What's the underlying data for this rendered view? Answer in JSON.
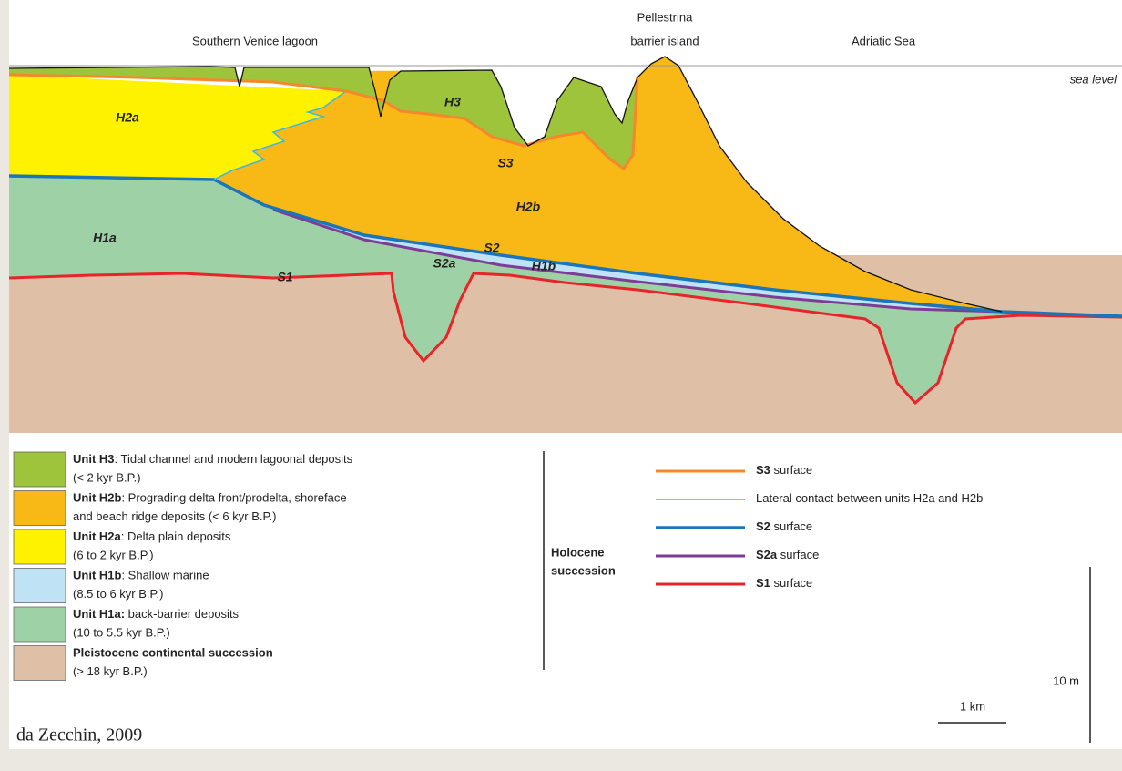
{
  "header": {
    "lagoon": "Southern Venice lagoon",
    "barrier": [
      "Pellestrina",
      "barrier island"
    ],
    "sea": "Adriatic Sea"
  },
  "section": {
    "sea_level": "sea level",
    "labels": [
      "H3",
      "H2a",
      "S3",
      "H2b",
      "H1a",
      "S2",
      "S2a",
      "H1b",
      "S1"
    ]
  },
  "legend": {
    "units": [
      {
        "name": "Unit H3",
        "text": ": Tidal channel and modern lagoonal deposits",
        "detail": "(< 2 kyr B.P.)"
      },
      {
        "name": "Unit H2b",
        "text": ": Prograding delta front/prodelta, shoreface",
        "detail": "and beach ridge deposits (< 6 kyr B.P.)"
      },
      {
        "name": "Unit H2a",
        "text": ": Delta plain deposits",
        "detail": "(6 to 2 kyr B.P.)"
      },
      {
        "name": "Unit H1b",
        "text": ": Shallow marine",
        "detail": "(8.5 to 6 kyr B.P.)"
      },
      {
        "name": "Unit H1a:",
        "text": " back-barrier deposits",
        "detail": "(10 to 5.5 kyr B.P.)"
      },
      {
        "name": "Pleistocene continental succession",
        "detail": "(> 18 kyr B.P.)"
      }
    ],
    "group": [
      "Holocene",
      "succession"
    ],
    "lines": [
      {
        "name": "S3",
        "text": " surface"
      },
      {
        "text": "Lateral contact between units H2a and H2b"
      },
      {
        "name": "S2",
        "text": " surface"
      },
      {
        "name": "S2a",
        "text": " surface"
      },
      {
        "name": "S1",
        "text": " surface"
      }
    ]
  },
  "scale": {
    "vertical": "10 m",
    "horizontal": "1 km"
  },
  "credit": "da Zecchin, 2009"
}
